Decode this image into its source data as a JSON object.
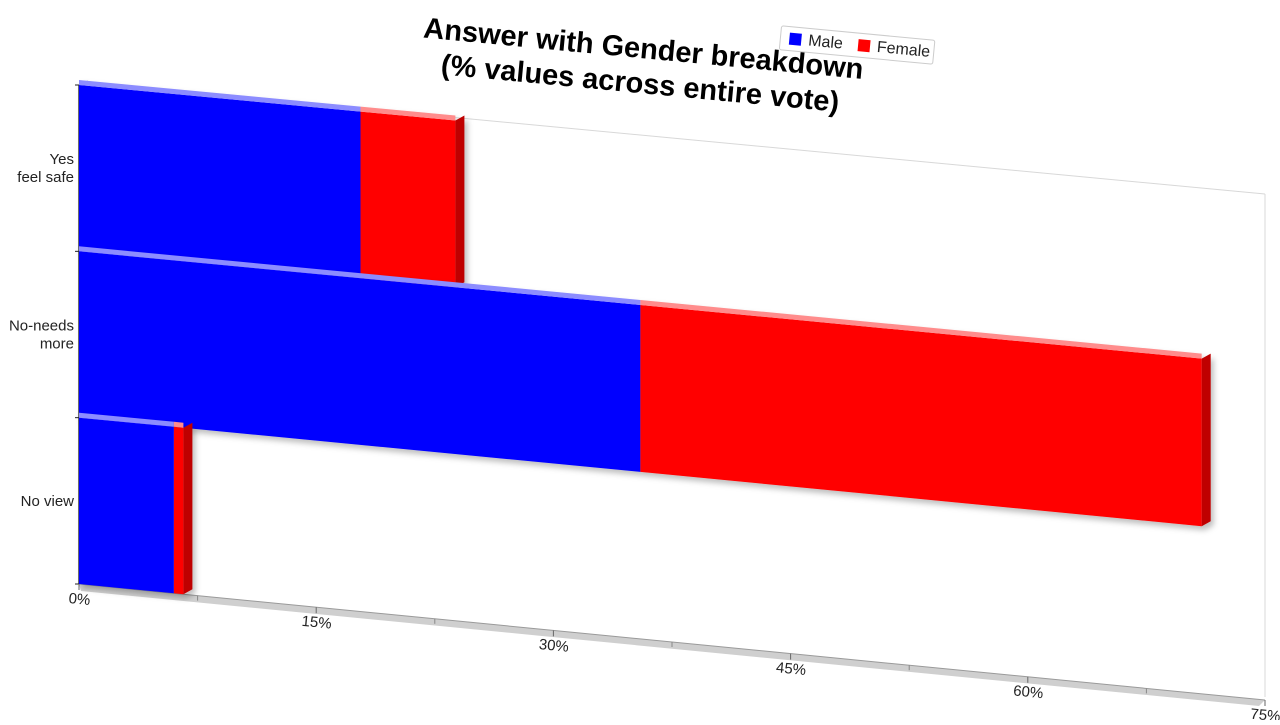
{
  "chart_data": {
    "type": "bar",
    "orientation": "horizontal",
    "stacked": true,
    "title": "Answer with Gender breakdown\n(% values across entire vote)",
    "title_lines": [
      "Answer with Gender breakdown",
      "(% values across entire vote)"
    ],
    "categories": [
      "Yes\nfeel safe",
      "No-needs\nmore",
      "No view"
    ],
    "category_lines": [
      [
        "Yes",
        "feel safe"
      ],
      [
        "No-needs",
        "more"
      ],
      [
        "No view"
      ]
    ],
    "series": [
      {
        "name": "Male",
        "color": "#0000ff",
        "values": [
          17.8,
          35.5,
          6.0
        ]
      },
      {
        "name": "Female",
        "color": "#ff0000",
        "values": [
          6.0,
          35.5,
          0.6
        ]
      }
    ],
    "xlim": [
      0,
      75
    ],
    "ticks": [
      {
        "value": 0,
        "label": "0%"
      },
      {
        "value": 15,
        "label": "15%"
      },
      {
        "value": 30,
        "label": "30%"
      },
      {
        "value": 45,
        "label": "45%"
      },
      {
        "value": 60,
        "label": "60%"
      },
      {
        "value": 75,
        "label": "75%"
      }
    ],
    "legend_position": "top-right",
    "grid": false
  }
}
